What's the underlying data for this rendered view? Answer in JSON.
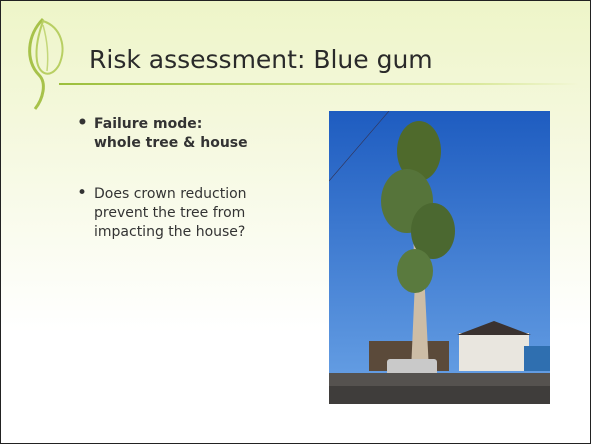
{
  "slide": {
    "title": "Risk assessment: Blue gum",
    "bullets": [
      {
        "text": "Failure mode:  whole tree & house",
        "bold": true
      },
      {
        "text": "Does crown reduction prevent the tree from impacting the house?",
        "bold": false
      }
    ]
  }
}
